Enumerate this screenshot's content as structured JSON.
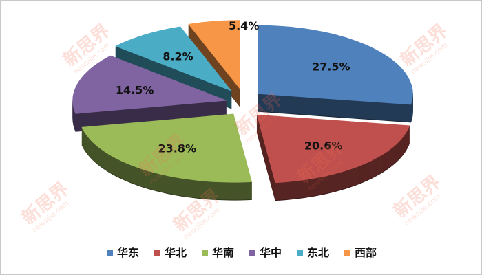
{
  "chart_data": {
    "type": "pie",
    "style": "3d-exploded",
    "categories": [
      "华东",
      "华北",
      "华南",
      "华中",
      "东北",
      "西部"
    ],
    "values": [
      27.5,
      20.6,
      23.8,
      14.5,
      8.2,
      5.4
    ],
    "labels": [
      "27.5%",
      "20.6%",
      "23.8%",
      "14.5%",
      "8.2%",
      "5.4%"
    ],
    "colors": [
      "#4f81bd",
      "#c0504d",
      "#9bbb59",
      "#8064a2",
      "#4bacc6",
      "#f79646"
    ],
    "legend_position": "bottom",
    "start_angle": "12 o'clock, clockwise"
  },
  "watermark": {
    "text": "新思界",
    "url": "newsijie.com"
  }
}
